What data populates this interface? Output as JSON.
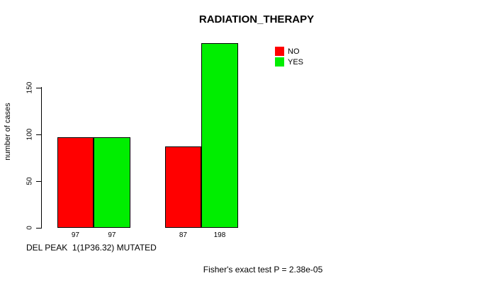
{
  "title": "RADIATION_THERAPY",
  "axes": {
    "ylabel": "number of cases",
    "xlabel": "DEL PEAK  1(1P36.32) MUTATED"
  },
  "annotation": "Fisher's exact test P = 2.38e-05",
  "legend": {
    "items": [
      {
        "label": "NO",
        "color": "#ff0000"
      },
      {
        "label": "YES",
        "color": "#00ee00"
      }
    ]
  },
  "chart_data": {
    "type": "bar",
    "title": "RADIATION_THERAPY",
    "xlabel": "DEL PEAK 1(1P36.32) MUTATED",
    "ylabel": "number of cases",
    "series": [
      {
        "name": "NO",
        "color": "#ff0000",
        "values": [
          97,
          87
        ]
      },
      {
        "name": "YES",
        "color": "#00ee00",
        "values": [
          97,
          198
        ]
      }
    ],
    "bar_value_labels": [
      [
        "97",
        "87"
      ],
      [
        "97",
        "198"
      ]
    ],
    "yticks": [
      0,
      50,
      100,
      150
    ],
    "ylim": [
      0,
      200
    ],
    "grid": false,
    "legend_position": "top-right",
    "annotation": "Fisher's exact test P = 2.38e-05"
  }
}
